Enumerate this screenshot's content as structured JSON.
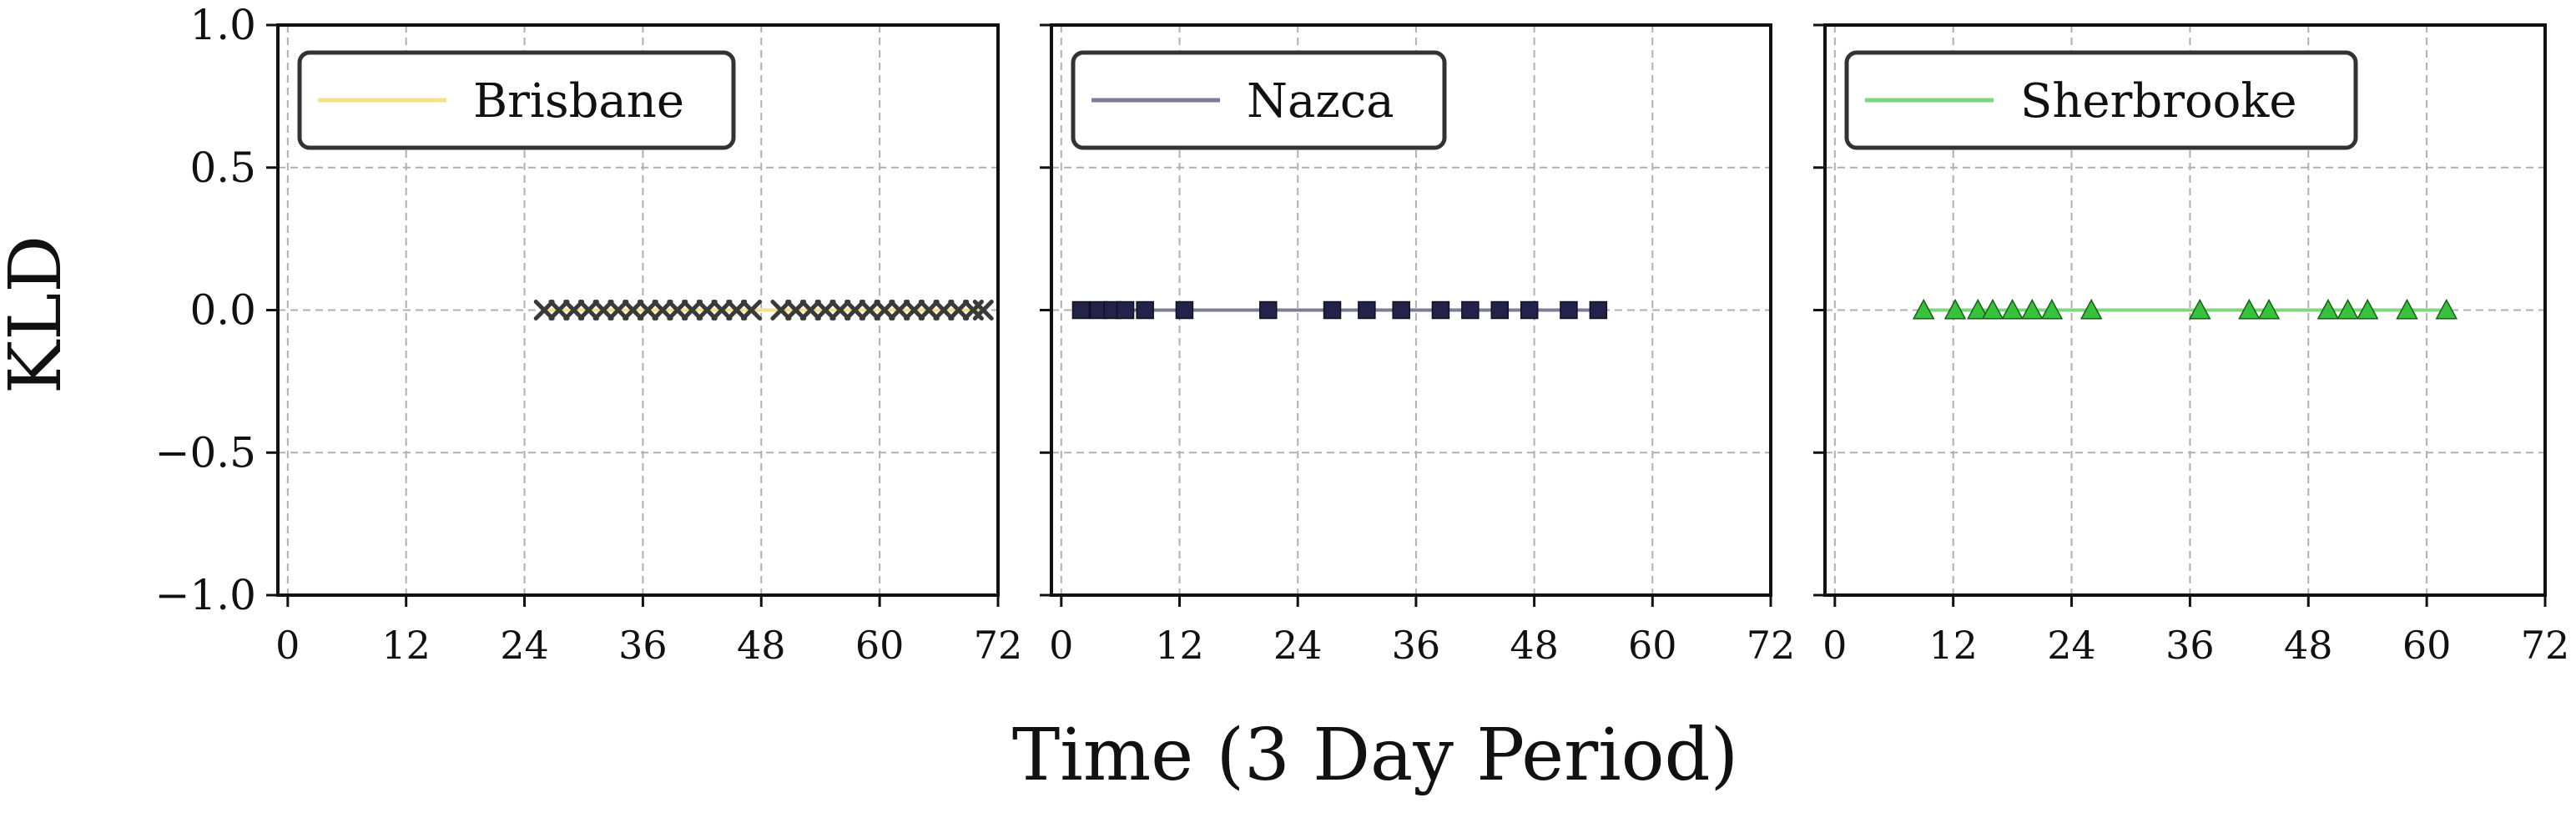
{
  "chart_data": {
    "type": "line",
    "xlabel": "Time (3 Day Period)",
    "ylabel": "KLD",
    "xlim": [
      -1,
      72
    ],
    "ylim": [
      -1.0,
      1.0
    ],
    "xticks": [
      0,
      12,
      24,
      36,
      48,
      60,
      72
    ],
    "xtick_labels": [
      "0",
      "12",
      "24",
      "36",
      "48",
      "60",
      "72"
    ],
    "yticks": [
      1.0,
      0.5,
      0.0,
      -0.5,
      -1.0
    ],
    "ytick_labels": [
      "1.0",
      "0.5",
      "0.0",
      "−0.5",
      "−1.0"
    ],
    "grid": true,
    "legend_position": "upper-left",
    "panels": [
      {
        "series": [
          {
            "name": "Brisbane",
            "line_color": "#f5e08a",
            "marker": "x",
            "marker_color": "#3a3a3a",
            "x": [
              26,
              27.5,
              29,
              30.5,
              32,
              33.5,
              35,
              36.5,
              38,
              39.5,
              41,
              42.5,
              44,
              45.5,
              47,
              50,
              51.5,
              53,
              54.5,
              56,
              57.5,
              59,
              60.5,
              62,
              63.5,
              65,
              66.5,
              68,
              69.5,
              70.5
            ],
            "y": [
              0,
              0,
              0,
              0,
              0,
              0,
              0,
              0,
              0,
              0,
              0,
              0,
              0,
              0,
              0,
              0,
              0,
              0,
              0,
              0,
              0,
              0,
              0,
              0,
              0,
              0,
              0,
              0,
              0,
              0
            ]
          }
        ]
      },
      {
        "series": [
          {
            "name": "Nazca",
            "line_color": "#7e7b99",
            "marker": "square",
            "marker_color": "#22224a",
            "x": [
              2,
              3.8,
              5.2,
              6.5,
              8.5,
              12.5,
              21,
              27.5,
              31,
              34.5,
              38.5,
              41.5,
              44.5,
              47.5,
              51.5,
              54.5
            ],
            "y": [
              0,
              0,
              0,
              0,
              0,
              0,
              0,
              0,
              0,
              0,
              0,
              0,
              0,
              0,
              0,
              0
            ]
          }
        ]
      },
      {
        "series": [
          {
            "name": "Sherbrooke",
            "line_color": "#7ed67e",
            "marker": "triangle",
            "marker_color": "#36c23a",
            "x": [
              9,
              12.2,
              14.5,
              16,
              18,
              20,
              22,
              26,
              37,
              42,
              44,
              50,
              52,
              54,
              58,
              62
            ],
            "y": [
              0,
              0,
              0,
              0,
              0,
              0,
              0,
              0,
              0,
              0,
              0,
              0,
              0,
              0,
              0,
              0
            ]
          }
        ]
      }
    ]
  }
}
